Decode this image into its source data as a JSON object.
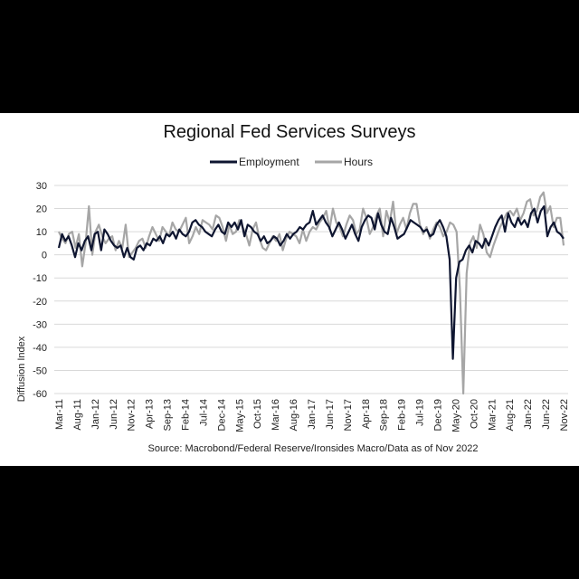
{
  "colors": {
    "employment": "#0e1530",
    "hours": "#a6a6a6",
    "grid": "#d9d9d9",
    "background": "#ffffff",
    "border": "#000000"
  },
  "chart_data": {
    "type": "line",
    "title": "Regional Fed Services Surveys",
    "ylabel": "Diffusion Index",
    "xlabel": "",
    "source": "Source: Macrobond/Federal Reserve/Ironsides Macro/Data as of Nov 2022",
    "ylim": [
      -60,
      30
    ],
    "yticks": [
      "30",
      "20",
      "10",
      "0",
      "-10",
      "-20",
      "-30",
      "-40",
      "-50",
      "-60"
    ],
    "grid": "horizontal",
    "legend_position": "top-center",
    "x_start": "2011-03",
    "x_end": "2022-11",
    "xticks": [
      "Mar-11",
      "Aug-11",
      "Jan-12",
      "Jun-12",
      "Nov-12",
      "Apr-13",
      "Sep-13",
      "Feb-14",
      "Jul-14",
      "Dec-14",
      "May-15",
      "Oct-15",
      "Mar-16",
      "Aug-16",
      "Jan-17",
      "Jun-17",
      "Nov-17",
      "Apr-18",
      "Sep-18",
      "Feb-19",
      "Jul-19",
      "Dec-19",
      "May-20",
      "Oct-20",
      "Mar-21",
      "Aug-21",
      "Jan-22",
      "Jun-22",
      "Nov-22"
    ],
    "series": [
      {
        "name": "Employment",
        "values": [
          3,
          9,
          6,
          8,
          4,
          -1,
          5,
          2,
          6,
          8,
          2,
          9,
          10,
          2,
          11,
          9,
          6,
          4,
          3,
          4,
          -1,
          3,
          -1,
          -2,
          3,
          4,
          2,
          5,
          4,
          7,
          6,
          8,
          5,
          9,
          8,
          10,
          7,
          11,
          9,
          8,
          10,
          14,
          15,
          13,
          12,
          10,
          9,
          8,
          11,
          13,
          10,
          9,
          14,
          12,
          14,
          11,
          15,
          8,
          13,
          12,
          10,
          9,
          6,
          8,
          5,
          6,
          8,
          7,
          4,
          6,
          9,
          7,
          9,
          10,
          12,
          11,
          13,
          14,
          19,
          13,
          15,
          17,
          14,
          12,
          8,
          11,
          14,
          11,
          7,
          10,
          13,
          9,
          6,
          12,
          15,
          17,
          16,
          11,
          18,
          13,
          10,
          9,
          16,
          12,
          7,
          8,
          9,
          12,
          15,
          14,
          13,
          12,
          10,
          11,
          8,
          9,
          13,
          15,
          12,
          8,
          -2,
          -45,
          -10,
          -3,
          -2,
          2,
          4,
          1,
          6,
          5,
          3,
          7,
          4,
          8,
          12,
          15,
          17,
          10,
          18,
          14,
          12,
          16,
          13,
          15,
          12,
          18,
          20,
          14,
          19,
          21,
          8,
          12,
          14,
          10,
          9,
          7
        ],
        "color": "#0e1530"
      },
      {
        "name": "Hours",
        "values": [
          10,
          7,
          5,
          9,
          10,
          3,
          9,
          -5,
          5,
          21,
          0,
          10,
          13,
          8,
          5,
          7,
          8,
          2,
          6,
          3,
          13,
          -1,
          1,
          3,
          6,
          7,
          3,
          8,
          12,
          9,
          6,
          12,
          10,
          8,
          14,
          11,
          10,
          13,
          16,
          5,
          8,
          12,
          9,
          15,
          14,
          13,
          11,
          17,
          16,
          12,
          6,
          13,
          9,
          10,
          15,
          12,
          9,
          4,
          11,
          14,
          7,
          3,
          2,
          5,
          8,
          6,
          9,
          2,
          7,
          10,
          9,
          8,
          5,
          11,
          6,
          10,
          12,
          11,
          14,
          16,
          19,
          11,
          20,
          14,
          12,
          8,
          13,
          17,
          15,
          9,
          11,
          20,
          16,
          9,
          12,
          17,
          20,
          8,
          19,
          14,
          23,
          9,
          13,
          16,
          11,
          18,
          22,
          22,
          13,
          9,
          12,
          7,
          11,
          14,
          12,
          8,
          10,
          14,
          13,
          10,
          -15,
          -60,
          -8,
          5,
          8,
          3,
          13,
          9,
          1,
          -1,
          4,
          8,
          12,
          15,
          18,
          19,
          17,
          20,
          15,
          18,
          23,
          24,
          17,
          19,
          25,
          27,
          18,
          21,
          12,
          16,
          16,
          4
        ],
        "color": "#a6a6a6"
      }
    ]
  }
}
